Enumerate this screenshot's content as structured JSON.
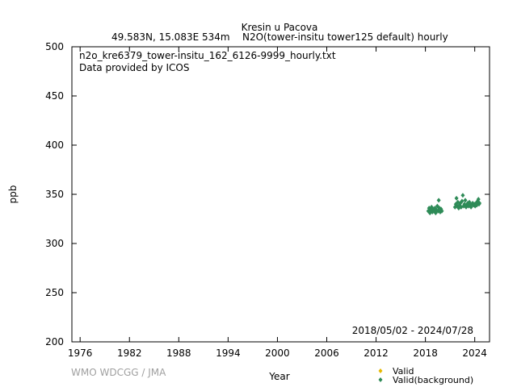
{
  "chart_data": {
    "type": "scatter",
    "title": "Kresin u Pacova",
    "subtitle_left": "49.583N, 15.083E 534m",
    "subtitle_right": "N2O(tower-insitu tower125 default) hourly",
    "file_label": "n2o_kre6379_tower-insitu_162_6126-9999_hourly.txt",
    "provider_label": "Data provided by ICOS",
    "date_range": "2018/05/02 - 2024/07/28",
    "xlabel": "Year",
    "ylabel": "ppb",
    "xlim": [
      1975,
      2025.8
    ],
    "ylim": [
      200,
      500
    ],
    "x_ticks": [
      1976,
      1982,
      1988,
      1994,
      2000,
      2006,
      2012,
      2018,
      2024
    ],
    "y_ticks": [
      200,
      250,
      300,
      350,
      400,
      450,
      500
    ],
    "watermark": "WMO WDCGG / JMA",
    "legend_position": "bottom-right",
    "series": [
      {
        "name": "Valid",
        "color": "#e6b800",
        "marker": "diamond",
        "points": []
      },
      {
        "name": "Valid(background)",
        "color": "#2e8b57",
        "marker": "diamond",
        "points": [
          [
            2018.35,
            333
          ],
          [
            2018.45,
            336
          ],
          [
            2018.55,
            331
          ],
          [
            2018.65,
            334
          ],
          [
            2018.75,
            337
          ],
          [
            2018.85,
            332
          ],
          [
            2018.95,
            335
          ],
          [
            2019.05,
            333
          ],
          [
            2019.15,
            336
          ],
          [
            2019.25,
            331
          ],
          [
            2019.35,
            334
          ],
          [
            2019.45,
            338
          ],
          [
            2019.55,
            333
          ],
          [
            2019.62,
            344
          ],
          [
            2019.7,
            336
          ],
          [
            2019.8,
            332
          ],
          [
            2019.9,
            335
          ],
          [
            2020.0,
            333
          ],
          [
            2021.6,
            337
          ],
          [
            2021.7,
            340
          ],
          [
            2021.78,
            346
          ],
          [
            2021.85,
            338
          ],
          [
            2021.95,
            342
          ],
          [
            2022.05,
            336
          ],
          [
            2022.15,
            339
          ],
          [
            2022.25,
            341
          ],
          [
            2022.35,
            337
          ],
          [
            2022.45,
            343
          ],
          [
            2022.55,
            349
          ],
          [
            2022.65,
            338
          ],
          [
            2022.75,
            340
          ],
          [
            2022.85,
            344
          ],
          [
            2022.95,
            337
          ],
          [
            2023.05,
            339
          ],
          [
            2023.15,
            341
          ],
          [
            2023.25,
            338
          ],
          [
            2023.35,
            342
          ],
          [
            2023.45,
            339
          ],
          [
            2023.55,
            337
          ],
          [
            2023.65,
            340
          ],
          [
            2023.75,
            341
          ],
          [
            2023.85,
            339
          ],
          [
            2023.95,
            340
          ],
          [
            2024.05,
            338
          ],
          [
            2024.15,
            341
          ],
          [
            2024.25,
            339
          ],
          [
            2024.35,
            343
          ],
          [
            2024.45,
            345
          ],
          [
            2024.52,
            340
          ],
          [
            2024.58,
            341
          ]
        ]
      }
    ]
  }
}
